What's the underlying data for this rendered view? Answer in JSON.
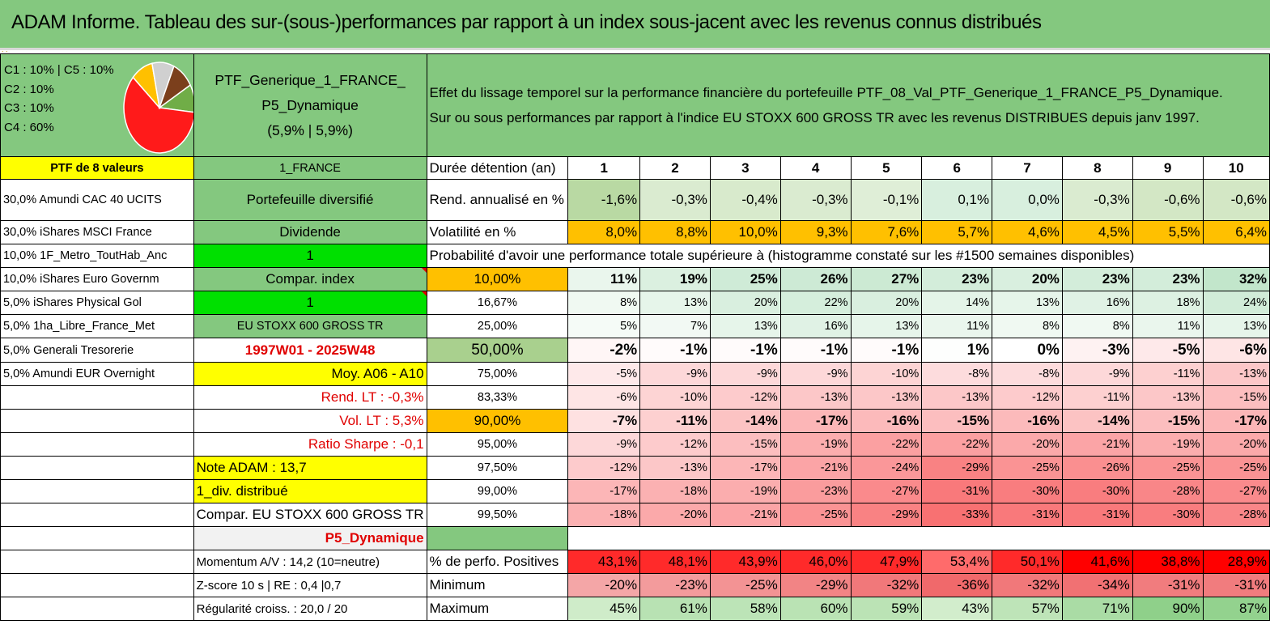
{
  "title": "ADAM Informe. Tableau des sur-(sous-)performances par rapport à un index sous-jacent avec les revenus connus distribués",
  "legend": [
    "C1 : 10% | C5 : 10%",
    "C2 : 10%",
    "C3 : 10%",
    "C4 : 60%"
  ],
  "pie": {
    "slices": [
      {
        "name": "C4",
        "value": 60,
        "color": "#ff1a1a"
      },
      {
        "name": "C5",
        "value": 10,
        "color": "#ffc000"
      },
      {
        "name": "C1",
        "value": 10,
        "color": "#d0d0d0"
      },
      {
        "name": "C2",
        "value": 10,
        "color": "#7b3f1c"
      },
      {
        "name": "C3",
        "value": 10,
        "color": "#70ad47"
      }
    ]
  },
  "portfolio": {
    "name_line1": "PTF_Generique_1_FRANCE_",
    "name_line2": "P5_Dynamique",
    "name_line3": "(5,9% | 5,9%)",
    "values_count": "PTF de 8 valeurs",
    "country": "1_FRANCE",
    "type": "Portefeuille diversifié",
    "dividend": "Dividende",
    "one_a": "1",
    "compar_index": "Compar. index",
    "one_b": "1",
    "index_name": "EU STOXX 600 GROSS TR",
    "period": "1997W01 - 2025W48",
    "moy": "Moy. A06 - A10",
    "rend_lt": "Rend. LT : -0,3%",
    "vol_lt": "Vol. LT : 5,3%",
    "sharpe": "Ratio Sharpe : -0,1",
    "note": "Note ADAM : 13,7",
    "div": "1_div. distribué",
    "compar": "Compar. EU STOXX 600 GROSS TR",
    "profile": "P5_Dynamique",
    "momentum": "Momentum A/V : 14,2 (10=neutre)",
    "zscore": "Z-score 10 s | RE : 0,4 |0,7",
    "regularite": "Régularité croiss. : 20,0 / 20"
  },
  "description": {
    "line1": "Effet du lissage temporel sur la performance financière du portefeuille PTF_08_Val_PTF_Generique_1_FRANCE_P5_Dynamique.",
    "line2": "Sur ou sous performances par rapport à l'indice EU STOXX 600 GROSS TR avec les revenus DISTRIBUES depuis janv 1997."
  },
  "holdings": [
    "30,0% Amundi CAC 40 UCITS",
    "30,0% iShares MSCI France",
    "10,0% 1F_Metro_ToutHab_Anc",
    "10,0% iShares Euro Governm",
    "5,0% iShares Physical Gol",
    "5,0% 1ha_Libre_France_Met",
    "5,0% Generali Tresorerie",
    "5,0% Amundi EUR Overnight"
  ],
  "table": {
    "duration_label": "Durée détention (an)",
    "years": [
      "1",
      "2",
      "3",
      "4",
      "5",
      "6",
      "7",
      "8",
      "9",
      "10"
    ],
    "rend_label": "Rend. annualisé en %",
    "rend": [
      "-1,6%",
      "-0,3%",
      "-0,4%",
      "-0,3%",
      "-0,1%",
      "0,1%",
      "0,0%",
      "-0,3%",
      "-0,6%",
      "-0,6%"
    ],
    "vol_label": "Volatilité en %",
    "vol": [
      "8,0%",
      "8,8%",
      "10,0%",
      "9,3%",
      "7,6%",
      "5,7%",
      "4,6%",
      "4,5%",
      "5,5%",
      "6,4%"
    ],
    "prob_title": "Probabilité d'avoir une performance totale supérieure à (histogramme constaté sur les #1500 semaines disponibles)",
    "quantiles": [
      {
        "level": "10,00%",
        "values": [
          "11%",
          "19%",
          "25%",
          "26%",
          "27%",
          "23%",
          "20%",
          "23%",
          "23%",
          "32%"
        ]
      },
      {
        "level": "16,67%",
        "values": [
          "8%",
          "13%",
          "20%",
          "22%",
          "20%",
          "14%",
          "13%",
          "16%",
          "18%",
          "24%"
        ]
      },
      {
        "level": "25,00%",
        "values": [
          "5%",
          "7%",
          "13%",
          "16%",
          "13%",
          "11%",
          "8%",
          "8%",
          "11%",
          "13%"
        ]
      },
      {
        "level": "50,00%",
        "values": [
          "-2%",
          "-1%",
          "-1%",
          "-1%",
          "-1%",
          "1%",
          "0%",
          "-3%",
          "-5%",
          "-6%"
        ]
      },
      {
        "level": "75,00%",
        "values": [
          "-5%",
          "-9%",
          "-9%",
          "-9%",
          "-10%",
          "-8%",
          "-8%",
          "-9%",
          "-11%",
          "-13%"
        ]
      },
      {
        "level": "83,33%",
        "values": [
          "-6%",
          "-10%",
          "-12%",
          "-13%",
          "-13%",
          "-13%",
          "-12%",
          "-11%",
          "-13%",
          "-15%"
        ]
      },
      {
        "level": "90,00%",
        "values": [
          "-7%",
          "-11%",
          "-14%",
          "-17%",
          "-16%",
          "-15%",
          "-16%",
          "-14%",
          "-15%",
          "-17%"
        ]
      },
      {
        "level": "95,00%",
        "values": [
          "-9%",
          "-12%",
          "-15%",
          "-19%",
          "-22%",
          "-22%",
          "-20%",
          "-21%",
          "-19%",
          "-20%"
        ]
      },
      {
        "level": "97,50%",
        "values": [
          "-12%",
          "-13%",
          "-17%",
          "-21%",
          "-24%",
          "-29%",
          "-25%",
          "-26%",
          "-25%",
          "-25%"
        ]
      },
      {
        "level": "99,00%",
        "values": [
          "-17%",
          "-18%",
          "-19%",
          "-23%",
          "-27%",
          "-31%",
          "-30%",
          "-30%",
          "-28%",
          "-27%"
        ]
      },
      {
        "level": "99,50%",
        "values": [
          "-18%",
          "-20%",
          "-21%",
          "-25%",
          "-29%",
          "-33%",
          "-31%",
          "-31%",
          "-30%",
          "-28%"
        ]
      }
    ],
    "pos_label": "% de perfo. Positives",
    "pos": [
      "43,1%",
      "48,1%",
      "43,9%",
      "46,0%",
      "47,9%",
      "53,4%",
      "50,1%",
      "41,6%",
      "38,8%",
      "28,9%"
    ],
    "min_label": "Minimum",
    "min": [
      "-20%",
      "-23%",
      "-25%",
      "-29%",
      "-32%",
      "-36%",
      "-32%",
      "-34%",
      "-31%",
      "-31%"
    ],
    "max_label": "Maximum",
    "max": [
      "45%",
      "61%",
      "58%",
      "60%",
      "59%",
      "43%",
      "57%",
      "71%",
      "90%",
      "87%"
    ]
  },
  "colors": {
    "header_green": "#84c87f",
    "yellow": "#ffff00",
    "bright_green": "#00e000",
    "orange": "#ffc000",
    "red_text": "#e00000"
  }
}
